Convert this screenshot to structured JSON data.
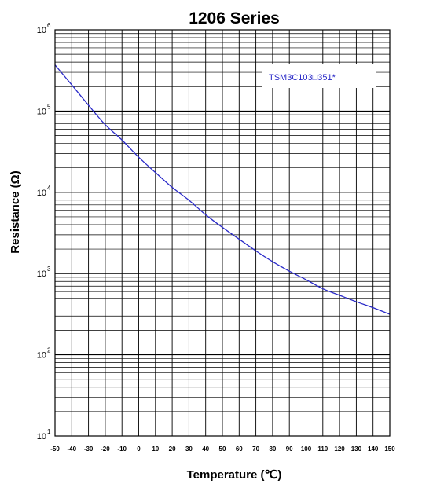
{
  "chart_data": {
    "type": "line",
    "title": "1206 Series",
    "xlabel": "Temperature (℃)",
    "ylabel": "Resistance (Ω)",
    "x_ticks": [
      -50,
      -40,
      -30,
      -20,
      -10,
      0,
      10,
      20,
      30,
      40,
      50,
      60,
      70,
      80,
      90,
      100,
      110,
      120,
      130,
      140,
      150
    ],
    "y_ticks": [
      {
        "base": "10",
        "exp": "1",
        "value": 10
      },
      {
        "base": "10",
        "exp": "2",
        "value": 100
      },
      {
        "base": "10",
        "exp": "3",
        "value": 1000
      },
      {
        "base": "10",
        "exp": "4",
        "value": 10000
      },
      {
        "base": "10",
        "exp": "5",
        "value": 100000
      },
      {
        "base": "10",
        "exp": "6",
        "value": 1000000
      }
    ],
    "xlim": [
      -50,
      150
    ],
    "ylim": [
      10,
      1000000
    ],
    "y_scale": "log",
    "grid": true,
    "legend_position": "top-right",
    "colors": {
      "line": "#2a2ac8",
      "grid": "#000000"
    },
    "series": [
      {
        "name": "TSM3C103□351*",
        "x": [
          -50,
          -40,
          -30,
          -20,
          -10,
          0,
          10,
          20,
          30,
          40,
          50,
          60,
          70,
          80,
          90,
          100,
          110,
          120,
          130,
          140,
          150
        ],
        "y": [
          370000,
          210000,
          118000,
          68000,
          44000,
          27000,
          17500,
          11500,
          8000,
          5300,
          3700,
          2650,
          1900,
          1400,
          1070,
          840,
          650,
          540,
          450,
          380,
          315
        ]
      }
    ]
  }
}
